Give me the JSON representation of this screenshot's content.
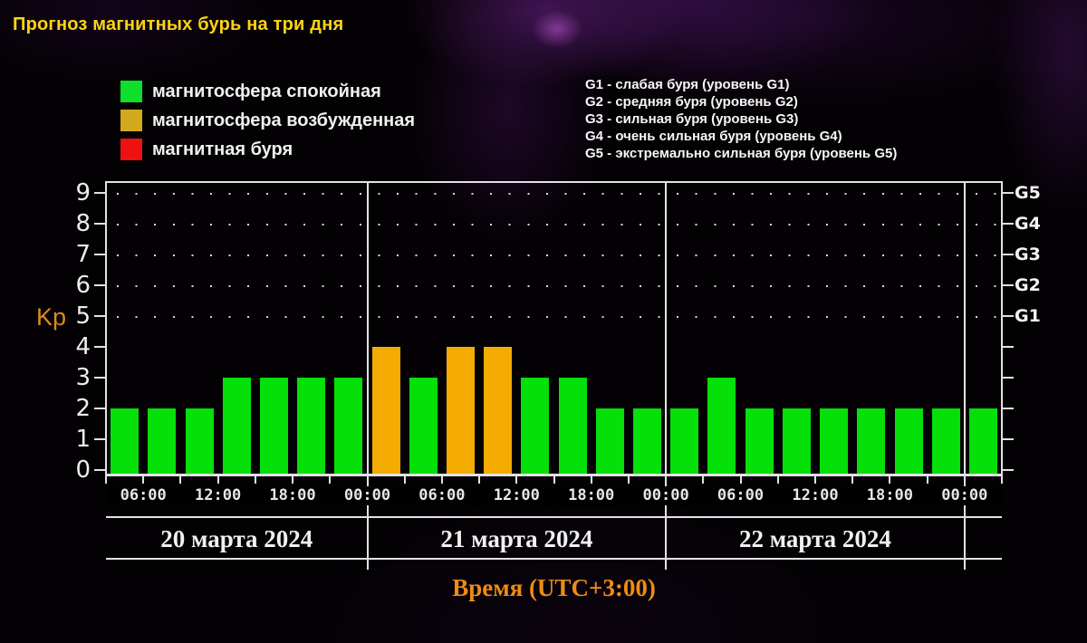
{
  "title": "Прогноз магнитных бурь на три дня",
  "legend": [
    {
      "label": "магнитосфера спокойная",
      "state": "quiet",
      "color": "#0ce02a"
    },
    {
      "label": "магнитосфера возбужденная",
      "state": "excited",
      "color": "#d2a91c"
    },
    {
      "label": "магнитная буря",
      "state": "storm",
      "color": "#ee1111"
    }
  ],
  "g_levels_legend": [
    "G1 - слабая буря (уровень G1)",
    "G2 - средняя буря (уровень G2)",
    "G3 - сильная буря (уровень G3)",
    "G4 - очень сильная буря (уровень G4)",
    "G5 - экстремально сильная буря (уровень G5)"
  ],
  "chart_data": {
    "type": "bar",
    "title": "Прогноз магнитных бурь на три дня",
    "ylabel": "Kp",
    "xlabel": "Время (UTC+3:00)",
    "ylim": [
      0,
      9
    ],
    "yticks": [
      0,
      1,
      2,
      3,
      4,
      5,
      6,
      7,
      8,
      9
    ],
    "right_axis": [
      {
        "label": "G5",
        "kp": 9
      },
      {
        "label": "G4",
        "kp": 8
      },
      {
        "label": "G3",
        "kp": 7
      },
      {
        "label": "G2",
        "kp": 6
      },
      {
        "label": "G1",
        "kp": 5
      }
    ],
    "dotted_grid_kp": [
      5,
      6,
      7,
      8,
      9
    ],
    "axis_start_hour": 3,
    "hours_per_bar": 3,
    "time_tick_labels": [
      "06:00",
      "12:00",
      "18:00",
      "00:00",
      "06:00",
      "12:00",
      "18:00",
      "00:00",
      "06:00",
      "12:00",
      "18:00",
      "00:00"
    ],
    "days": [
      {
        "date": "20 марта 2024",
        "bars": [
          {
            "kp": 2,
            "state": "quiet"
          },
          {
            "kp": 2,
            "state": "quiet"
          },
          {
            "kp": 2,
            "state": "quiet"
          },
          {
            "kp": 3,
            "state": "quiet"
          },
          {
            "kp": 3,
            "state": "quiet"
          },
          {
            "kp": 3,
            "state": "quiet"
          },
          {
            "kp": 3,
            "state": "quiet"
          }
        ]
      },
      {
        "date": "21 марта 2024",
        "bars": [
          {
            "kp": 4,
            "state": "excited"
          },
          {
            "kp": 3,
            "state": "quiet"
          },
          {
            "kp": 4,
            "state": "excited"
          },
          {
            "kp": 4,
            "state": "excited"
          },
          {
            "kp": 3,
            "state": "quiet"
          },
          {
            "kp": 3,
            "state": "quiet"
          },
          {
            "kp": 2,
            "state": "quiet"
          },
          {
            "kp": 2,
            "state": "quiet"
          }
        ]
      },
      {
        "date": "22 марта 2024",
        "bars": [
          {
            "kp": 2,
            "state": "quiet"
          },
          {
            "kp": 3,
            "state": "quiet"
          },
          {
            "kp": 2,
            "state": "quiet"
          },
          {
            "kp": 2,
            "state": "quiet"
          },
          {
            "kp": 2,
            "state": "quiet"
          },
          {
            "kp": 2,
            "state": "quiet"
          },
          {
            "kp": 2,
            "state": "quiet"
          },
          {
            "kp": 2,
            "state": "quiet"
          }
        ]
      }
    ],
    "extra_bars": [
      {
        "kp": 2,
        "state": "quiet"
      }
    ],
    "colors": {
      "quiet": "#04e008",
      "excited": "#f4ab02",
      "storm": "#ee1111"
    }
  }
}
